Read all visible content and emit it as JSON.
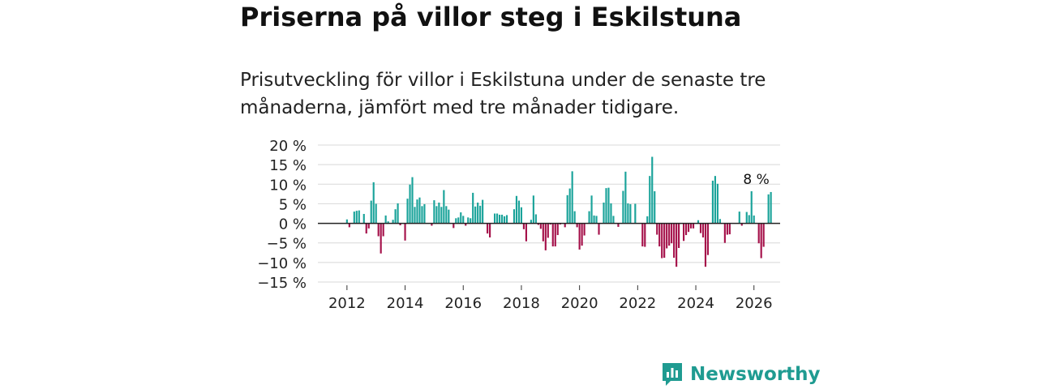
{
  "title": "Priserna på villor steg i Eskilstuna",
  "subtitle": "Prisutveckling för villor i Eskilstuna under de senaste tre månaderna, jämfört med tre månader tidigare.",
  "brand": {
    "name": "Newsworthy",
    "icon": "newsworthy-logo-icon"
  },
  "colors": {
    "positive": "#1aa39a",
    "negative": "#a5114a",
    "grid": "#d8d8d8",
    "zero": "#222222",
    "brand": "#1f9b91"
  },
  "chart_data": {
    "type": "bar",
    "title": "Priserna på villor steg i Eskilstuna",
    "xlabel": "",
    "ylabel": "",
    "ylim": [
      -15,
      20
    ],
    "xlim": [
      2011.0,
      2026.9
    ],
    "yticks": [
      -15,
      -10,
      -5,
      0,
      5,
      10,
      15,
      20
    ],
    "ytick_labels": [
      "−15 %",
      "−10 %",
      "−5 %",
      "0 %",
      "5 %",
      "10 %",
      "15 %",
      "20 %"
    ],
    "xticks": [
      2012,
      2014,
      2016,
      2018,
      2020,
      2022,
      2024,
      2026
    ],
    "xtick_labels": [
      "2012",
      "2014",
      "2016",
      "2018",
      "2020",
      "2022",
      "2024",
      "2026"
    ],
    "start": 2012.0,
    "step": 0.08333,
    "values": [
      1,
      -1,
      0,
      3,
      3.2,
      3.3,
      0,
      2.4,
      -2.6,
      -1.3,
      5.8,
      10.5,
      5,
      -3.3,
      -7.7,
      -3.3,
      2,
      0.5,
      0,
      0.9,
      3.6,
      5.1,
      -0.5,
      0,
      -4.4,
      6.3,
      9.9,
      11.8,
      4.2,
      6.1,
      6.6,
      4.4,
      4.9,
      0,
      0,
      -0.6,
      5.9,
      4.4,
      5.3,
      4.2,
      8.5,
      4.4,
      3.5,
      0,
      -1.2,
      1.3,
      1.5,
      2.8,
      1.9,
      -0.6,
      1.5,
      1.3,
      7.8,
      4.3,
      5.3,
      4.5,
      6,
      0,
      -2.6,
      -3.6,
      0,
      2.5,
      2.5,
      2.2,
      2.2,
      1.8,
      2.1,
      0,
      0,
      3.6,
      7,
      5.8,
      4.1,
      -1.5,
      -4.6,
      0,
      0.9,
      7.1,
      2.3,
      -0.4,
      -1.4,
      -4.6,
      -6.9,
      -3.7,
      -0.3,
      -5.9,
      -5.9,
      -3,
      -0.3,
      0,
      -1,
      7.2,
      8.9,
      13.3,
      3.1,
      -1,
      -6.7,
      -5.7,
      -3.1,
      0,
      3.1,
      7.1,
      2,
      1.9,
      -2.9,
      0,
      5.3,
      9,
      9.1,
      5.1,
      1.9,
      0,
      -0.9,
      0,
      8.3,
      13.2,
      5.1,
      4.9,
      0,
      5,
      0,
      0,
      -5.9,
      -6,
      1.8,
      12.1,
      17,
      8.2,
      -2.9,
      -5.9,
      -8.9,
      -8.8,
      -6.4,
      -5.7,
      -5.1,
      -8.8,
      -11.1,
      -6.3,
      0,
      -4.5,
      -3,
      -2.2,
      -1.3,
      -1.3,
      0,
      0.8,
      -2.5,
      -3.6,
      -11.1,
      -8.1,
      0,
      10.9,
      12.1,
      10.1,
      1.1,
      0,
      -5,
      -2.9,
      -2.8,
      0,
      0,
      0,
      3,
      -0.6,
      0,
      2.9,
      2.1,
      8.2,
      2,
      0,
      -5.1,
      -8.9,
      -6,
      0,
      7.4,
      8
    ],
    "annotations": [
      {
        "x": 2026.08,
        "y": 8,
        "text": "8 %"
      }
    ]
  }
}
